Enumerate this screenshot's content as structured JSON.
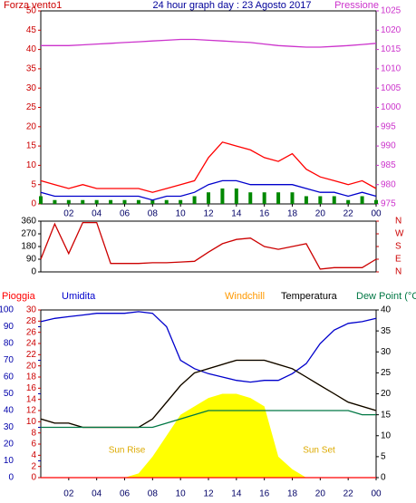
{
  "chart_data": [
    {
      "type": "line",
      "left_title": "Forza vento1",
      "title": "24 hour graph day : 23 Agosto 2017",
      "right_title": "Pressione",
      "x": [
        0,
        1,
        2,
        3,
        4,
        5,
        6,
        7,
        8,
        9,
        10,
        11,
        12,
        13,
        14,
        15,
        16,
        17,
        18,
        19,
        20,
        21,
        22,
        23,
        24
      ],
      "xlim": [
        0,
        24
      ],
      "xticks": [
        {
          "value": 2,
          "label": "02"
        },
        {
          "value": 4,
          "label": "04"
        },
        {
          "value": 6,
          "label": "06"
        },
        {
          "value": 8,
          "label": "08"
        },
        10,
        12,
        14,
        16,
        18,
        20,
        22,
        {
          "value": 24,
          "label": "00"
        }
      ],
      "ylim": [
        0,
        50
      ],
      "yticks": [
        0,
        5,
        10,
        15,
        20,
        25,
        30,
        35,
        40,
        45,
        50
      ],
      "ycolor": "#cc0000",
      "y2lim": [
        975,
        1025
      ],
      "y2ticks": [
        975,
        980,
        985,
        990,
        995,
        1000,
        1005,
        1010,
        1015,
        1020,
        1025
      ],
      "y2color": "#cc33cc",
      "series": [
        {
          "type": "bars",
          "color": "#008800",
          "values": [
            2,
            1,
            1,
            1,
            1,
            1,
            1,
            1,
            1,
            1,
            1,
            2,
            3,
            4,
            4,
            3,
            3,
            3,
            3,
            2,
            2,
            2,
            1,
            2,
            1
          ]
        },
        {
          "type": "line",
          "color": "#ff0000",
          "values": [
            6,
            5,
            4,
            5,
            4,
            4,
            4,
            4,
            3,
            4,
            5,
            6,
            12,
            16,
            15,
            14,
            12,
            11,
            13,
            9,
            7,
            6,
            5,
            6,
            4
          ]
        },
        {
          "type": "line",
          "color": "#0000cc",
          "values": [
            3,
            2,
            2,
            2,
            2,
            2,
            2,
            2,
            1,
            2,
            2,
            3,
            5,
            6,
            6,
            5,
            5,
            5,
            5,
            4,
            3,
            3,
            2,
            3,
            2
          ]
        },
        {
          "type": "line",
          "color": "#cc33cc",
          "axis": "y2",
          "values": [
            1016,
            1016,
            1016,
            1016.2,
            1016.4,
            1016.6,
            1016.8,
            1017,
            1017.2,
            1017.4,
            1017.6,
            1017.6,
            1017.4,
            1017.2,
            1017,
            1016.8,
            1016.4,
            1016,
            1015.8,
            1015.6,
            1015.6,
            1015.8,
            1016,
            1016.3,
            1016.6
          ]
        }
      ]
    },
    {
      "type": "line",
      "x": [
        0,
        1,
        2,
        3,
        4,
        5,
        6,
        7,
        8,
        9,
        10,
        11,
        12,
        13,
        14,
        15,
        16,
        17,
        18,
        19,
        20,
        21,
        22,
        23,
        24
      ],
      "xlim": [
        0,
        24
      ],
      "ylim": [
        0,
        360
      ],
      "yticks": [
        0,
        90,
        180,
        270,
        360
      ],
      "ycolor": "#000000",
      "y2lim": [
        0,
        360
      ],
      "y2ticks": [
        {
          "value": 0,
          "label": "N"
        },
        {
          "value": 90,
          "label": "E"
        },
        {
          "value": 180,
          "label": "S"
        },
        {
          "value": 270,
          "label": "W"
        },
        {
          "value": 360,
          "label": "N"
        }
      ],
      "y2color": "#cc0000",
      "series": [
        {
          "type": "line",
          "color": "#cc0000",
          "values": [
            90,
            340,
            130,
            350,
            350,
            60,
            60,
            60,
            65,
            65,
            70,
            75,
            140,
            200,
            230,
            240,
            180,
            160,
            180,
            200,
            20,
            30,
            30,
            30,
            90
          ]
        }
      ]
    },
    {
      "type": "line",
      "x": [
        0,
        1,
        2,
        3,
        4,
        5,
        6,
        7,
        8,
        9,
        10,
        11,
        12,
        13,
        14,
        15,
        16,
        17,
        18,
        19,
        20,
        21,
        22,
        23,
        24
      ],
      "xlim": [
        0,
        24
      ],
      "xticks": [
        {
          "value": 2,
          "label": "02"
        },
        {
          "value": 4,
          "label": "04"
        },
        {
          "value": 6,
          "label": "06"
        },
        {
          "value": 8,
          "label": "08"
        },
        10,
        12,
        14,
        16,
        18,
        20,
        22,
        {
          "value": 24,
          "label": "00"
        }
      ],
      "ylim": [
        0,
        100
      ],
      "yticks": [
        0,
        10,
        20,
        30,
        40,
        50,
        60,
        70,
        80,
        90,
        100
      ],
      "ycolor": "#0000aa",
      "y3lim": [
        0,
        30
      ],
      "y3ticks": [
        0,
        2,
        4,
        6,
        8,
        10,
        12,
        14,
        16,
        18,
        20,
        22,
        24,
        26,
        28,
        30
      ],
      "y3color": "#cc0000",
      "y2lim": [
        0,
        40
      ],
      "y2ticks": [
        0,
        5,
        10,
        15,
        20,
        25,
        30,
        35,
        40
      ],
      "y2color": "#000000",
      "annotations": [
        "Sun Rise",
        "Sun Set"
      ],
      "series": [
        {
          "type": "area",
          "color": "#ffff00",
          "axis": "y2",
          "values": [
            0,
            0,
            0,
            0,
            0,
            0,
            0,
            1,
            5,
            10,
            15,
            17,
            19,
            20,
            20,
            19,
            17,
            5,
            2,
            0,
            0,
            0,
            0,
            0,
            0
          ]
        },
        {
          "name": "Pioggia",
          "type": "line",
          "color": "#ff0000",
          "axis": "y3",
          "values": [
            0,
            0,
            0,
            0,
            0,
            0,
            0,
            0,
            0,
            0,
            0,
            0,
            0,
            0,
            0,
            0,
            0,
            0,
            0,
            0,
            0,
            0,
            0,
            0,
            0
          ]
        },
        {
          "name": "Umidita",
          "type": "line",
          "color": "#0000cc",
          "values": [
            93,
            95,
            96,
            97,
            98,
            98,
            98,
            99,
            98,
            90,
            70,
            65,
            62,
            60,
            58,
            57,
            58,
            58,
            62,
            68,
            80,
            88,
            92,
            93,
            95
          ]
        },
        {
          "name": "Windchill",
          "type": "line",
          "color": "#ff9900",
          "axis": "y2",
          "values": [
            14,
            13,
            13,
            12,
            12,
            12,
            12,
            12,
            14,
            18,
            22,
            25,
            26,
            27,
            28,
            28,
            28,
            27,
            26,
            24,
            22,
            20,
            18,
            17,
            16
          ]
        },
        {
          "name": "Temperatura",
          "type": "line",
          "color": "#000000",
          "axis": "y2",
          "values": [
            14,
            13,
            13,
            12,
            12,
            12,
            12,
            12,
            14,
            18,
            22,
            25,
            26,
            27,
            28,
            28,
            28,
            27,
            26,
            24,
            22,
            20,
            18,
            17,
            16
          ]
        },
        {
          "name": "Dew Point (°C",
          "type": "line",
          "color": "#007744",
          "axis": "y2",
          "values": [
            12,
            12,
            12,
            12,
            12,
            12,
            12,
            12,
            12,
            13,
            14,
            15,
            16,
            16,
            16,
            16,
            16,
            16,
            16,
            16,
            16,
            16,
            16,
            15,
            15
          ]
        }
      ]
    }
  ]
}
